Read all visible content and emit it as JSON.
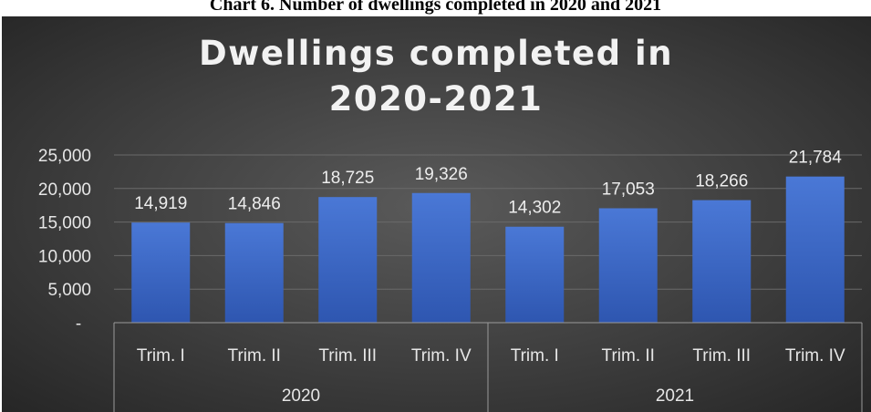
{
  "caption": "Chart 6. Number of dwellings completed in 2020 and 2021",
  "chart_data": {
    "type": "bar",
    "title_lines": [
      "Dwellings completed in",
      "2020-2021"
    ],
    "categories": [
      "Trim. I",
      "Trim. II",
      "Trim. III",
      "Trim. IV",
      "Trim. I",
      "Trim. II",
      "Trim. III",
      "Trim. IV"
    ],
    "groups": [
      {
        "label": "2020",
        "span": 4
      },
      {
        "label": "2021",
        "span": 4
      }
    ],
    "values": [
      14919,
      14846,
      18725,
      19326,
      14302,
      17053,
      18266,
      21784
    ],
    "data_labels": [
      "14,919",
      "14,846",
      "18,725",
      "19,326",
      "14,302",
      "17,053",
      "18,266",
      "21,784"
    ],
    "ylim": [
      0,
      25000
    ],
    "yticks": [
      {
        "value": 25000,
        "label": "25,000"
      },
      {
        "value": 20000,
        "label": "20,000"
      },
      {
        "value": 15000,
        "label": "15,000"
      },
      {
        "value": 10000,
        "label": "10,000"
      },
      {
        "value": 5000,
        "label": "5,000"
      },
      {
        "value": 0,
        "label": "-"
      }
    ],
    "grid": true,
    "legend": "none",
    "bar_color_top": "#4a78d6",
    "bar_color_bottom": "#2e56b0"
  }
}
